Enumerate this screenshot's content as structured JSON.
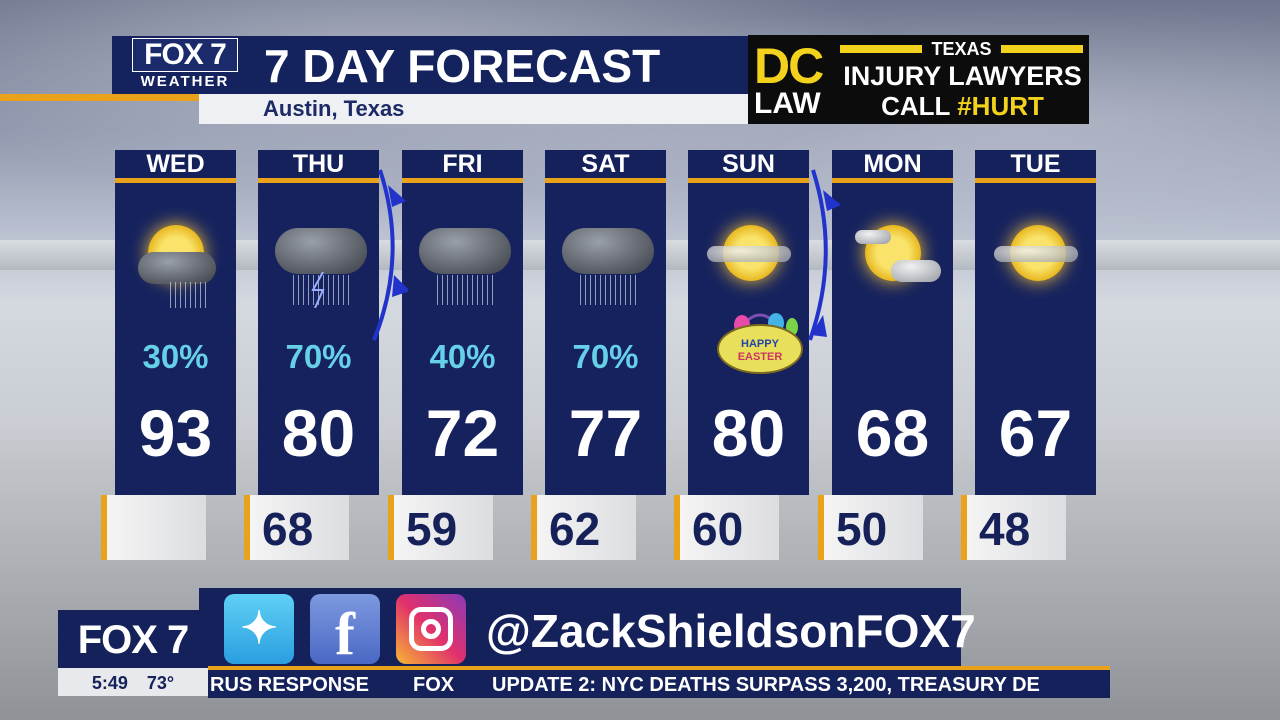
{
  "header": {
    "logo_top": "FOX 7",
    "logo_bottom": "WEATHER",
    "title": "7 DAY FORECAST",
    "location": "Austin, Texas"
  },
  "ad": {
    "dc": "DC",
    "law": "LAW",
    "state": "TEXAS",
    "line1": "INJURY LAWYERS",
    "call": "CALL",
    "hashtag": "#HURT"
  },
  "days": [
    {
      "day": "WED",
      "icon": "partly-cloudy-showers",
      "pop": "30%",
      "high": "93",
      "low": ""
    },
    {
      "day": "THU",
      "icon": "thunderstorm",
      "pop": "70%",
      "high": "80",
      "low": "68"
    },
    {
      "day": "FRI",
      "icon": "rain",
      "pop": "40%",
      "high": "72",
      "low": "59"
    },
    {
      "day": "SAT",
      "icon": "rain",
      "pop": "70%",
      "high": "77",
      "low": "62"
    },
    {
      "day": "SUN",
      "icon": "hazy-sun",
      "pop": "",
      "high": "80",
      "low": "60"
    },
    {
      "day": "MON",
      "icon": "partly-cloudy",
      "pop": "",
      "high": "68",
      "low": "50"
    },
    {
      "day": "TUE",
      "icon": "hazy-sun",
      "pop": "",
      "high": "67",
      "low": "48"
    }
  ],
  "easter_badge": "HAPPY EASTER",
  "social": {
    "handle": "@ZackShieldsonFOX7",
    "icons": [
      "twitter-icon",
      "facebook-icon",
      "instagram-icon"
    ]
  },
  "bug": {
    "station": "FOX 7",
    "time": "5:49",
    "temp": "73°"
  },
  "ticker": {
    "left": "RUS RESPONSE",
    "brand": "FOX",
    "text": "UPDATE 2: NYC DEATHS SURPASS 3,200, TREASURY DE"
  },
  "colors": {
    "navy": "#14215a",
    "orange": "#e9a21a",
    "pop": "#66d0e8",
    "ad_yellow": "#f2d21d",
    "front": "#2233cc"
  }
}
